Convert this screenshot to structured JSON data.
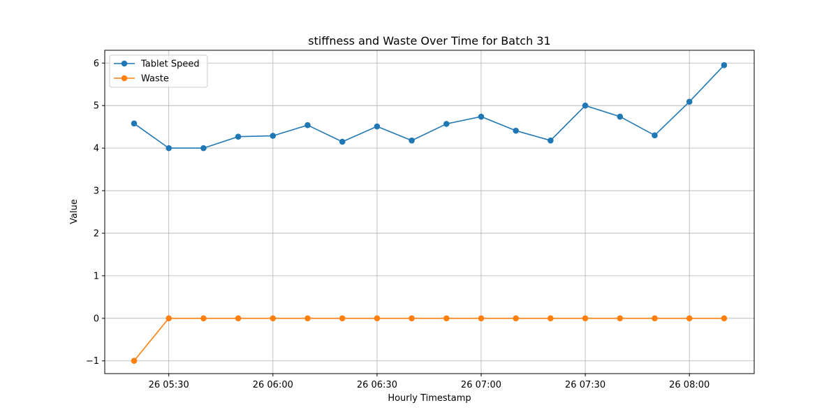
{
  "chart_data": {
    "type": "line",
    "title": "stiffness and Waste Over Time for Batch 31",
    "xlabel": "Hourly Timestamp",
    "ylabel": "Value",
    "x": [
      "26 05:20",
      "26 05:30",
      "26 05:40",
      "26 05:50",
      "26 06:00",
      "26 06:10",
      "26 06:20",
      "26 06:30",
      "26 06:40",
      "26 06:50",
      "26 07:00",
      "26 07:10",
      "26 07:20",
      "26 07:30",
      "26 07:40",
      "26 07:50",
      "26 08:00",
      "26 08:10"
    ],
    "x_tick_labels": [
      "26 05:30",
      "26 06:00",
      "26 06:30",
      "26 07:00",
      "26 07:30",
      "26 08:00"
    ],
    "y_tick_labels": [
      "−1",
      "0",
      "1",
      "2",
      "3",
      "4",
      "5",
      "6"
    ],
    "ylim": [
      -1.3,
      6.3
    ],
    "grid": true,
    "legend_position": "top-left",
    "series": [
      {
        "name": "Tablet Speed",
        "color": "#1f77b4",
        "values": [
          4.58,
          4.0,
          4.0,
          4.27,
          4.29,
          4.54,
          4.15,
          4.51,
          4.18,
          4.57,
          4.74,
          4.41,
          4.18,
          5.0,
          4.74,
          4.3,
          5.09,
          5.95
        ]
      },
      {
        "name": "Waste",
        "color": "#ff7f0e",
        "values": [
          -1,
          0,
          0,
          0,
          0,
          0,
          0,
          0,
          0,
          0,
          0,
          0,
          0,
          0,
          0,
          0,
          0,
          0
        ]
      }
    ]
  }
}
